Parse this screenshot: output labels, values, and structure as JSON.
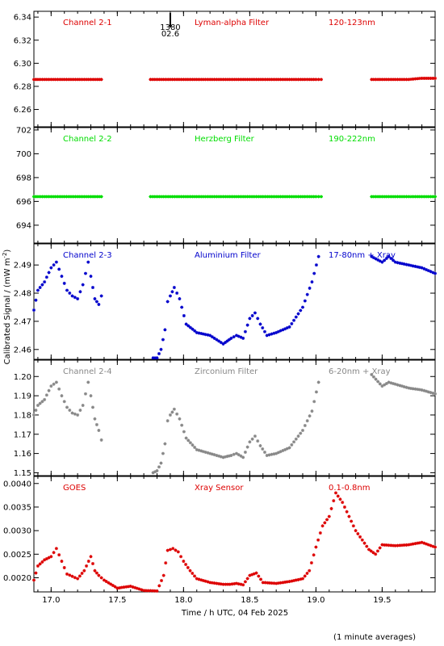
{
  "figure": {
    "ylabel": "Calibrated Signal / (mW m",
    "ylabel_sup": "-2",
    "ylabel_end": ")",
    "xlabel": "Time / h UTC, 04 Feb 2025",
    "footnote": "(1 minute averages)",
    "marker_top": "1380",
    "marker_bottom": "02.6",
    "marker_time": 17.9
  },
  "chart_data": [
    {
      "type": "scatter",
      "channel": "Channel 2-1",
      "filter": "Lyman-alpha Filter",
      "band": "120-123nm",
      "color": "#dd0000",
      "xlim": [
        16.87,
        19.9
      ],
      "ylim": [
        6.245,
        6.345
      ],
      "xticks": [
        17.0,
        17.5,
        18.0,
        18.5,
        19.0,
        19.5
      ],
      "yticks": [
        6.26,
        6.28,
        6.3,
        6.32,
        6.34
      ],
      "ytick_labels": [
        "6.26",
        "6.28",
        "6.30",
        "6.32",
        "6.34"
      ],
      "series": [
        {
          "x": [
            16.87,
            16.9,
            16.95,
            17.0,
            17.05,
            17.1,
            17.15,
            17.2,
            17.25,
            17.3,
            17.35,
            17.38
          ],
          "y": [
            6.286,
            6.286,
            6.286,
            6.286,
            6.286,
            6.286,
            6.286,
            6.286,
            6.286,
            6.286,
            6.286,
            6.286
          ]
        },
        {
          "x": [
            17.75,
            17.8,
            17.9,
            18.0,
            18.1,
            18.2,
            18.3,
            18.4,
            18.5,
            18.6,
            18.7,
            18.8,
            18.9,
            19.0,
            19.04
          ],
          "y": [
            6.286,
            6.286,
            6.286,
            6.286,
            6.286,
            6.286,
            6.286,
            6.286,
            6.286,
            6.286,
            6.286,
            6.286,
            6.286,
            6.286,
            6.286
          ]
        },
        {
          "x": [
            19.42,
            19.5,
            19.6,
            19.7,
            19.8,
            19.9
          ],
          "y": [
            6.286,
            6.286,
            6.286,
            6.286,
            6.287,
            6.287
          ]
        }
      ]
    },
    {
      "type": "scatter",
      "channel": "Channel 2-2",
      "filter": "Herzberg Filter",
      "band": "190-222nm",
      "color": "#00dd00",
      "xlim": [
        16.87,
        19.9
      ],
      "ylim": [
        692.5,
        702.2
      ],
      "xticks": [
        17.0,
        17.5,
        18.0,
        18.5,
        19.0,
        19.5
      ],
      "yticks": [
        694,
        696,
        698,
        700,
        702
      ],
      "ytick_labels": [
        "694",
        "696",
        "698",
        "700",
        "702"
      ],
      "series": [
        {
          "x": [
            16.87,
            16.9,
            17.0,
            17.1,
            17.2,
            17.3,
            17.38
          ],
          "y": [
            696.4,
            696.4,
            696.4,
            696.4,
            696.4,
            696.4,
            696.4
          ]
        },
        {
          "x": [
            17.75,
            17.8,
            18.0,
            18.2,
            18.4,
            18.6,
            18.8,
            19.0,
            19.04
          ],
          "y": [
            696.4,
            696.4,
            696.4,
            696.4,
            696.4,
            696.4,
            696.4,
            696.4,
            696.4
          ]
        },
        {
          "x": [
            19.42,
            19.5,
            19.6,
            19.7,
            19.8,
            19.9
          ],
          "y": [
            696.4,
            696.4,
            696.4,
            696.4,
            696.4,
            696.4
          ]
        }
      ]
    },
    {
      "type": "scatter",
      "channel": "Channel 2-3",
      "filter": "Aluminium Filter",
      "band": "17-80nm + Xray",
      "color": "#0000cc",
      "xlim": [
        16.87,
        19.9
      ],
      "ylim": [
        2.4565,
        2.4975
      ],
      "xticks": [
        17.0,
        17.5,
        18.0,
        18.5,
        19.0,
        19.5
      ],
      "yticks": [
        2.46,
        2.47,
        2.48,
        2.49
      ],
      "ytick_labels": [
        "2.46",
        "2.47",
        "2.48",
        "2.49"
      ],
      "series": [
        {
          "x": [
            16.87,
            16.9,
            16.95,
            17.0,
            17.04,
            17.08,
            17.12,
            17.16,
            17.2,
            17.24,
            17.28,
            17.3,
            17.33,
            17.36,
            17.38
          ],
          "y": [
            2.474,
            2.481,
            2.484,
            2.489,
            2.491,
            2.486,
            2.481,
            2.479,
            2.478,
            2.483,
            2.491,
            2.486,
            2.478,
            2.476,
            2.479
          ]
        },
        {
          "x": [
            17.77,
            17.8,
            17.83,
            17.86,
            17.88,
            17.9,
            17.93,
            17.97,
            18.02,
            18.1,
            18.2,
            18.3,
            18.36,
            18.4,
            18.45,
            18.5,
            18.54,
            18.58,
            18.63,
            18.7,
            18.8,
            18.9,
            18.97,
            19.02
          ],
          "y": [
            2.457,
            2.457,
            2.46,
            2.467,
            2.477,
            2.479,
            2.482,
            2.478,
            2.469,
            2.466,
            2.465,
            2.462,
            2.464,
            2.465,
            2.464,
            2.471,
            2.473,
            2.469,
            2.465,
            2.466,
            2.468,
            2.475,
            2.484,
            2.493
          ]
        },
        {
          "x": [
            19.42,
            19.5,
            19.55,
            19.6,
            19.7,
            19.8,
            19.9
          ],
          "y": [
            2.493,
            2.491,
            2.493,
            2.491,
            2.49,
            2.489,
            2.487
          ]
        }
      ]
    },
    {
      "type": "scatter",
      "channel": "Channel 2-4",
      "filter": "Zirconium Filter",
      "band": "6-20nm + Xray",
      "color": "#888888",
      "xlim": [
        16.87,
        19.9
      ],
      "ylim": [
        1.1485,
        1.2085
      ],
      "xticks": [
        17.0,
        17.5,
        18.0,
        18.5,
        19.0,
        19.5
      ],
      "yticks": [
        1.15,
        1.16,
        1.17,
        1.18,
        1.19,
        1.2
      ],
      "ytick_labels": [
        "1.15",
        "1.16",
        "1.17",
        "1.18",
        "1.19",
        "1.20"
      ],
      "series": [
        {
          "x": [
            16.87,
            16.9,
            16.95,
            17.0,
            17.04,
            17.08,
            17.12,
            17.16,
            17.2,
            17.24,
            17.28,
            17.3,
            17.33,
            17.36,
            17.38
          ],
          "y": [
            1.18,
            1.185,
            1.188,
            1.195,
            1.197,
            1.19,
            1.184,
            1.181,
            1.18,
            1.185,
            1.197,
            1.19,
            1.178,
            1.172,
            1.167
          ]
        },
        {
          "x": [
            17.77,
            17.8,
            17.83,
            17.86,
            17.88,
            17.9,
            17.93,
            17.97,
            18.02,
            18.1,
            18.2,
            18.3,
            18.36,
            18.4,
            18.45,
            18.5,
            18.54,
            18.58,
            18.63,
            18.7,
            18.8,
            18.9,
            18.97,
            19.02
          ],
          "y": [
            1.15,
            1.151,
            1.155,
            1.165,
            1.177,
            1.18,
            1.183,
            1.178,
            1.168,
            1.162,
            1.16,
            1.158,
            1.159,
            1.16,
            1.158,
            1.166,
            1.169,
            1.164,
            1.159,
            1.16,
            1.163,
            1.172,
            1.182,
            1.197
          ]
        },
        {
          "x": [
            19.42,
            19.5,
            19.55,
            19.6,
            19.7,
            19.8,
            19.9
          ],
          "y": [
            1.201,
            1.195,
            1.197,
            1.196,
            1.194,
            1.193,
            1.191
          ]
        }
      ]
    },
    {
      "type": "scatter",
      "channel": "GOES",
      "filter": "Xray Sensor",
      "band": "0.1-0.8nm",
      "color": "#dd0000",
      "xlim": [
        16.87,
        19.9
      ],
      "ylim": [
        0.0017,
        0.00415
      ],
      "xticks": [
        17.0,
        17.5,
        18.0,
        18.5,
        19.0,
        19.5
      ],
      "yticks": [
        0.002,
        0.0025,
        0.003,
        0.0035,
        0.004
      ],
      "ytick_labels": [
        "0.0020",
        "0.0025",
        "0.0030",
        "0.0035",
        "0.0040"
      ],
      "series": [
        {
          "x": [
            16.87,
            16.9,
            16.95,
            17.0,
            17.04,
            17.08,
            17.12,
            17.16,
            17.2,
            17.25,
            17.3,
            17.33,
            17.36,
            17.4,
            17.5,
            17.6,
            17.7,
            17.8,
            17.85,
            17.88,
            17.92,
            17.96,
            18.0,
            18.05,
            18.1,
            18.2,
            18.3,
            18.35,
            18.4,
            18.45,
            18.5,
            18.55,
            18.6,
            18.7,
            18.8,
            18.9,
            18.95,
            19.0,
            19.05,
            19.1,
            19.15,
            19.2,
            19.25,
            19.3,
            19.35,
            19.4,
            19.45,
            19.5,
            19.6,
            19.7,
            19.8,
            19.9
          ],
          "y": [
            0.00195,
            0.00225,
            0.00238,
            0.00245,
            0.00262,
            0.00235,
            0.00208,
            0.00203,
            0.00198,
            0.00215,
            0.00245,
            0.00215,
            0.00205,
            0.00195,
            0.00178,
            0.00182,
            0.00173,
            0.00172,
            0.00205,
            0.00258,
            0.00262,
            0.00255,
            0.00235,
            0.00215,
            0.00198,
            0.0019,
            0.00186,
            0.00186,
            0.00188,
            0.00185,
            0.00205,
            0.0021,
            0.0019,
            0.00188,
            0.00192,
            0.00198,
            0.00215,
            0.00265,
            0.0031,
            0.0033,
            0.0038,
            0.0036,
            0.0033,
            0.003,
            0.0028,
            0.0026,
            0.0025,
            0.0027,
            0.00268,
            0.0027,
            0.00275,
            0.00265
          ]
        }
      ]
    }
  ]
}
